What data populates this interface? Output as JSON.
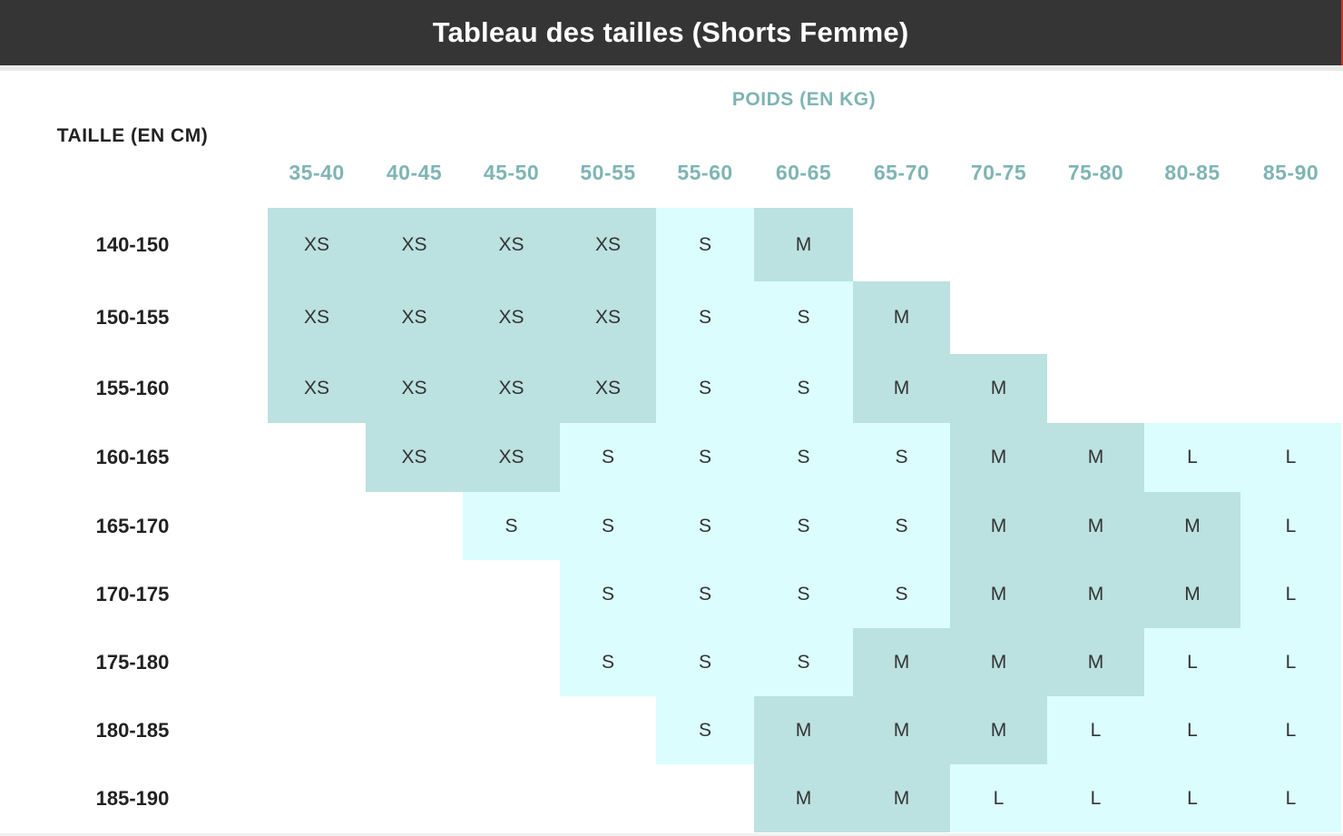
{
  "header": {
    "title": "Tableau des tailles (Shorts Femme)"
  },
  "labels": {
    "weight_axis": "POIDS (EN KG)",
    "height_axis": "TAILLE (EN CM)"
  },
  "weight_ranges": [
    "35-40",
    "40-45",
    "45-50",
    "50-55",
    "55-60",
    "60-65",
    "65-70",
    "70-75",
    "75-80",
    "80-85",
    "85-90"
  ],
  "height_ranges": [
    "140-150",
    "150-155",
    "155-160",
    "160-165",
    "165-170",
    "170-175",
    "175-180",
    "180-185",
    "185-190"
  ],
  "sizes": [
    [
      "XS",
      "XS",
      "XS",
      "XS",
      "S",
      "M",
      "",
      "",
      "",
      "",
      ""
    ],
    [
      "XS",
      "XS",
      "XS",
      "XS",
      "S",
      "S",
      "M",
      "",
      "",
      "",
      ""
    ],
    [
      "XS",
      "XS",
      "XS",
      "XS",
      "S",
      "S",
      "M",
      "M",
      "",
      "",
      ""
    ],
    [
      "",
      "XS",
      "XS",
      "S",
      "S",
      "S",
      "S",
      "M",
      "M",
      "L",
      "L"
    ],
    [
      "",
      "",
      "S",
      "S",
      "S",
      "S",
      "S",
      "M",
      "M",
      "M",
      "L"
    ],
    [
      "",
      "",
      "",
      "S",
      "S",
      "S",
      "S",
      "M",
      "M",
      "M",
      "L"
    ],
    [
      "",
      "",
      "",
      "S",
      "S",
      "S",
      "M",
      "M",
      "M",
      "L",
      "L"
    ],
    [
      "",
      "",
      "",
      "",
      "S",
      "M",
      "M",
      "M",
      "L",
      "L",
      "L"
    ],
    [
      "",
      "",
      "",
      "",
      "",
      "M",
      "M",
      "L",
      "L",
      "L",
      "L"
    ]
  ],
  "colors": {
    "header_bg": "#353535",
    "axis_label": "#7fb4b4",
    "dark_cell": "#bbe1e0",
    "light_cell": "#dbfdfd"
  }
}
